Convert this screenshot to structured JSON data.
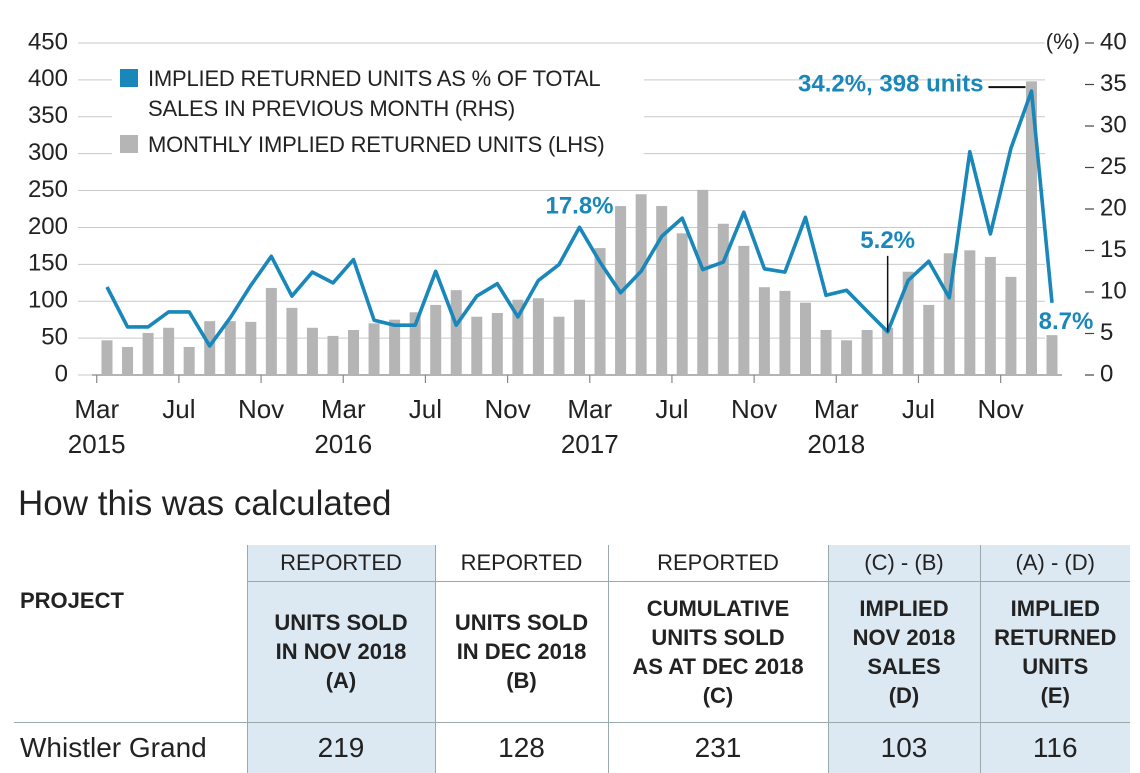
{
  "chart_data": {
    "type": "combo",
    "categories": [
      "Mar\n2015",
      null,
      null,
      null,
      "Jul",
      null,
      null,
      null,
      "Nov",
      null,
      null,
      null,
      "Mar\n2016",
      null,
      null,
      null,
      "Jul",
      null,
      null,
      null,
      "Nov",
      null,
      null,
      null,
      "Mar\n2017",
      null,
      null,
      null,
      "Jul",
      null,
      null,
      null,
      "Nov",
      null,
      null,
      null,
      "Mar\n2018",
      null,
      null,
      null,
      "Jul",
      null,
      null,
      null,
      "Nov",
      null,
      null
    ],
    "series": [
      {
        "name": "MONTHLY IMPLIED RETURNED UNITS (LHS)",
        "type": "bar",
        "axis": "y",
        "color": "#b5b5b5",
        "values": [
          47,
          38,
          57,
          64,
          38,
          73,
          73,
          72,
          118,
          91,
          64,
          53,
          61,
          70,
          75,
          85,
          95,
          115,
          79,
          84,
          102,
          104,
          79,
          102,
          172,
          229,
          245,
          229,
          192,
          251,
          205,
          175,
          119,
          114,
          98,
          61,
          47,
          61,
          64,
          140,
          95,
          165,
          169,
          160,
          133,
          398,
          54
        ]
      },
      {
        "name": "IMPLIED RETURNED UNITS AS % OF TOTAL SALES IN PREVIOUS MONTH (RHS)",
        "type": "line",
        "axis": "y2",
        "color": "#1a87bb",
        "values": [
          10.6,
          5.8,
          5.8,
          7.6,
          7.6,
          3.5,
          6.9,
          10.8,
          14.3,
          9.5,
          12.4,
          11.1,
          13.9,
          6.6,
          6.0,
          6.0,
          12.5,
          6.0,
          9.5,
          11.0,
          7.0,
          11.4,
          13.3,
          17.8,
          13.6,
          9.9,
          12.5,
          16.7,
          18.9,
          12.7,
          13.6,
          19.6,
          12.8,
          12.4,
          19.0,
          9.6,
          10.2,
          7.7,
          5.2,
          11.4,
          13.7,
          9.3,
          26.9,
          17.0,
          27.3,
          34.2,
          8.7
        ],
        "value_labels": [
          null,
          null,
          null,
          null,
          null,
          null,
          null,
          null,
          null,
          null,
          null,
          null,
          null,
          null,
          null,
          null,
          null,
          null,
          null,
          null,
          null,
          null,
          null,
          "17.8%",
          null,
          null,
          null,
          null,
          null,
          null,
          null,
          null,
          null,
          null,
          null,
          null,
          null,
          null,
          "5.2%",
          null,
          null,
          null,
          null,
          null,
          null,
          "34.2%, 398 units",
          "8.7%"
        ]
      }
    ],
    "ylim": [
      0,
      450
    ],
    "yticks": [
      0,
      50,
      100,
      150,
      200,
      250,
      300,
      350,
      400,
      450
    ],
    "y2lim": [
      0,
      40
    ],
    "y2ticks": [
      0,
      5,
      10,
      15,
      20,
      25,
      30,
      35,
      40
    ],
    "y2_label": "(%)",
    "grid": true,
    "legend": "upper left",
    "legend_order": [
      1,
      0
    ]
  },
  "section_title": "How this was calculated",
  "table": {
    "header_top": [
      "",
      "REPORTED",
      "REPORTED",
      "REPORTED",
      "(C) - (B)",
      "(A) - (D)"
    ],
    "header": [
      "PROJECT",
      "UNITS SOLD\nIN NOV 2018\n(A)",
      "UNITS SOLD\nIN DEC 2018\n(B)",
      "CUMULATIVE\nUNITS SOLD\nAS AT DEC 2018\n(C)",
      "IMPLIED\nNOV 2018\nSALES\n(D)",
      "IMPLIED\nRETURNED\nUNITS\n(E)"
    ],
    "rows": [
      [
        "Whistler Grand",
        "219",
        "128",
        "231",
        "103",
        "116"
      ]
    ]
  }
}
